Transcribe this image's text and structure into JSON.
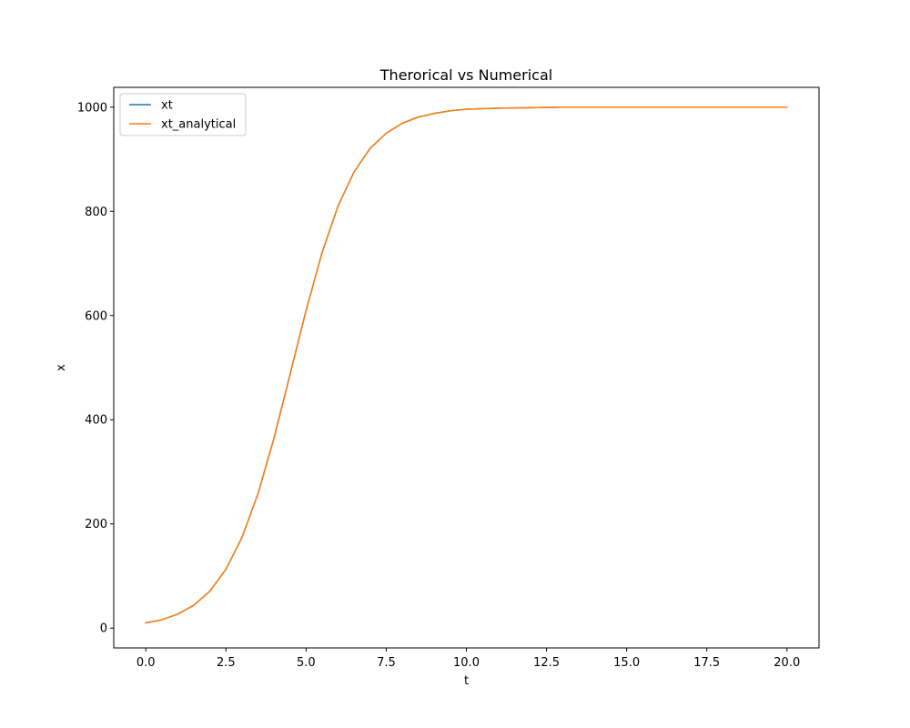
{
  "chart_data": {
    "type": "line",
    "title": "Therorical vs Numerical",
    "xlabel": "t",
    "ylabel": "x",
    "xlim": [
      -1.0,
      21.0
    ],
    "ylim": [
      -38,
      1038
    ],
    "xticks": [
      0.0,
      2.5,
      5.0,
      7.5,
      10.0,
      12.5,
      15.0,
      17.5,
      20.0
    ],
    "xtick_labels": [
      "0.0",
      "2.5",
      "5.0",
      "7.5",
      "10.0",
      "12.5",
      "15.0",
      "17.5",
      "20.0"
    ],
    "yticks": [
      0,
      200,
      400,
      600,
      800,
      1000
    ],
    "ytick_labels": [
      "0",
      "200",
      "400",
      "600",
      "800",
      "1000"
    ],
    "grid": false,
    "legend_position": "top-left",
    "x": [
      0,
      0.5,
      1,
      1.5,
      2,
      2.5,
      3,
      3.5,
      4,
      4.5,
      5,
      5.5,
      6,
      6.5,
      7,
      7.5,
      8,
      8.5,
      9,
      9.5,
      10,
      11,
      12,
      13,
      14,
      15,
      16,
      17,
      18,
      19,
      20
    ],
    "series": [
      {
        "name": "xt",
        "color": "#1f77b4",
        "values": [
          10,
          16,
          27,
          44,
          71,
          113,
          174,
          258,
          365,
          487,
          610,
          721,
          811,
          876,
          921,
          950,
          969,
          981,
          988,
          993,
          996,
          998,
          999,
          1000,
          1000,
          1000,
          1000,
          1000,
          1000,
          1000,
          1000
        ]
      },
      {
        "name": "xt_analytical",
        "color": "#ff7f0e",
        "values": [
          10,
          16,
          27,
          44,
          71,
          113,
          174,
          258,
          365,
          487,
          610,
          721,
          811,
          876,
          921,
          950,
          969,
          981,
          988,
          993,
          996,
          998,
          999,
          1000,
          1000,
          1000,
          1000,
          1000,
          1000,
          1000,
          1000
        ]
      }
    ]
  }
}
